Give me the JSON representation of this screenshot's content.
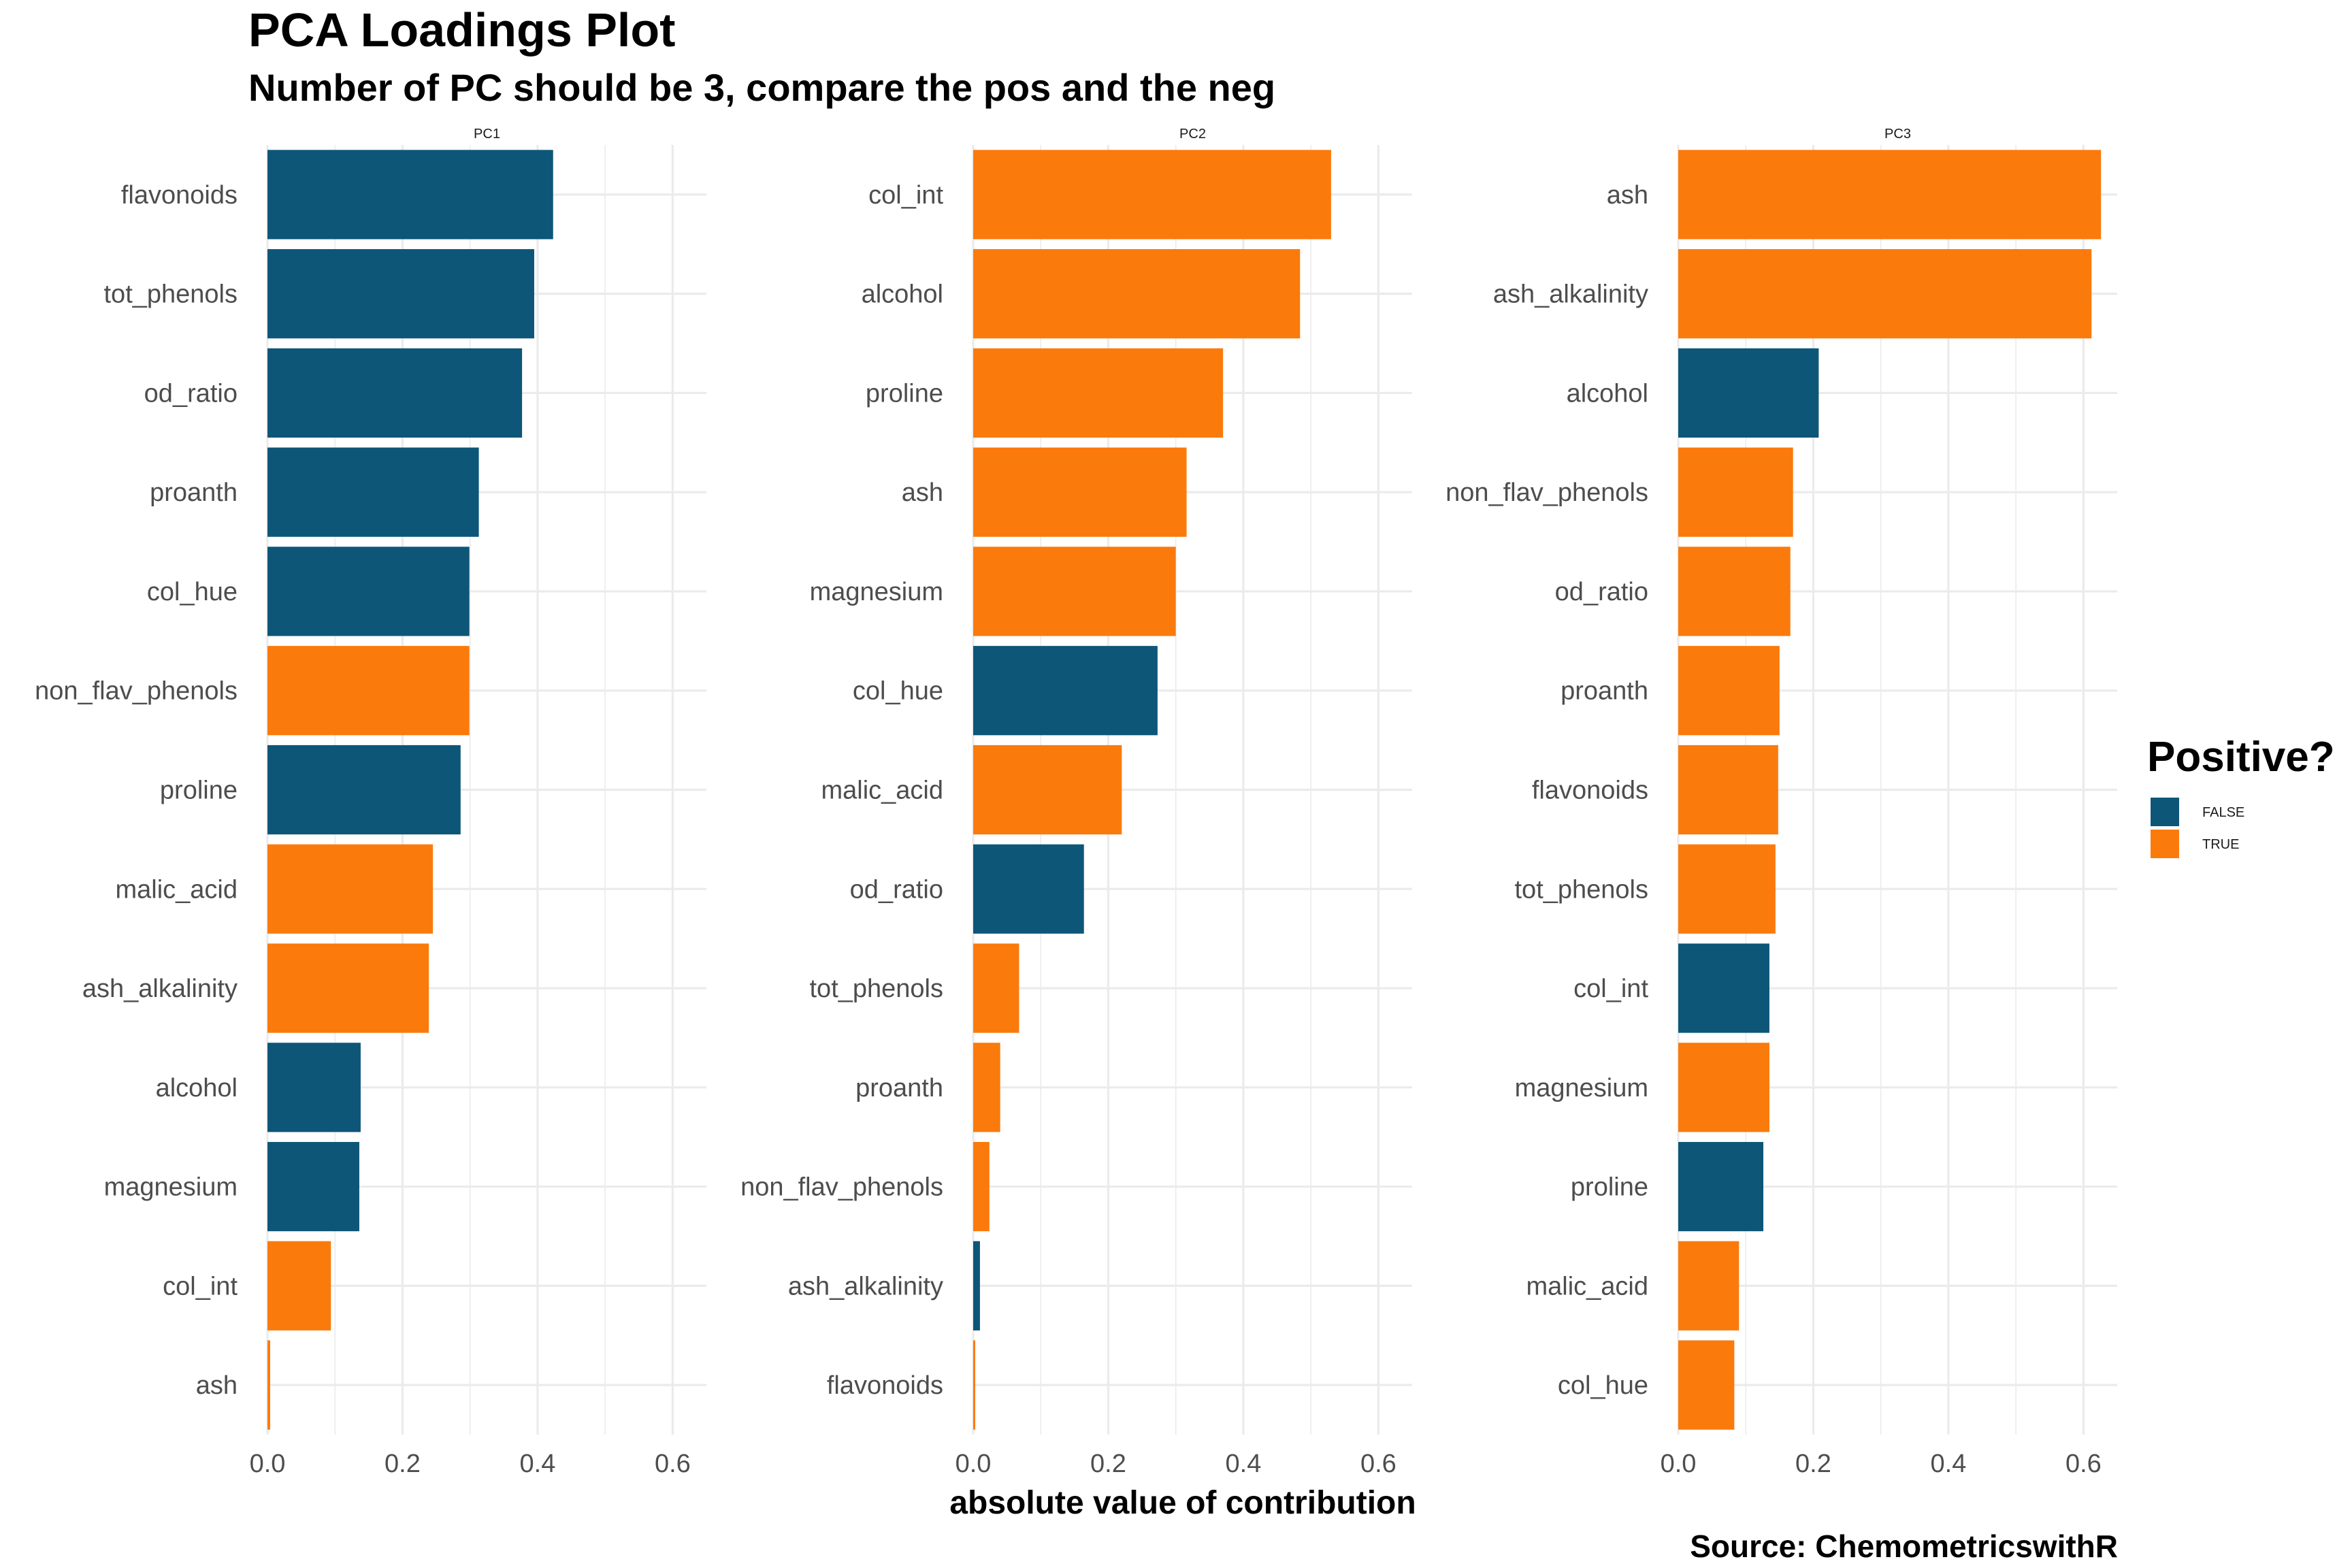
{
  "chart_data": {
    "type": "bar",
    "orientation": "horizontal",
    "title": "PCA Loadings Plot",
    "subtitle": "Number of PC should be 3, compare the pos and the neg",
    "xlabel": "absolute value of contribution",
    "caption": "Source: ChemometricswithR",
    "xlim": [
      0,
      0.65
    ],
    "xticks": [
      0.0,
      0.2,
      0.4,
      0.6
    ],
    "xtick_labels": [
      "0.0",
      "0.2",
      "0.4",
      "0.6"
    ],
    "legend": {
      "title": "Positive?",
      "position": "right",
      "entries": [
        {
          "label": "FALSE",
          "color": "#0d5678"
        },
        {
          "label": "TRUE",
          "color": "#fb7a0c"
        }
      ]
    },
    "facets": [
      {
        "name": "PC1",
        "categories": [
          "flavonoids",
          "tot_phenols",
          "od_ratio",
          "proanth",
          "col_hue",
          "non_flav_phenols",
          "proline",
          "malic_acid",
          "ash_alkalinity",
          "alcohol",
          "magnesium",
          "col_int",
          "ash"
        ],
        "values": [
          0.423,
          0.395,
          0.377,
          0.313,
          0.299,
          0.299,
          0.286,
          0.245,
          0.239,
          0.138,
          0.136,
          0.094,
          0.004
        ],
        "positive": [
          false,
          false,
          false,
          false,
          false,
          true,
          false,
          true,
          true,
          false,
          false,
          true,
          true
        ]
      },
      {
        "name": "PC2",
        "categories": [
          "col_int",
          "alcohol",
          "proline",
          "ash",
          "magnesium",
          "col_hue",
          "malic_acid",
          "od_ratio",
          "tot_phenols",
          "proanth",
          "non_flav_phenols",
          "ash_alkalinity",
          "flavonoids"
        ],
        "values": [
          0.53,
          0.484,
          0.37,
          0.316,
          0.3,
          0.273,
          0.22,
          0.164,
          0.068,
          0.04,
          0.024,
          0.01,
          0.003
        ],
        "positive": [
          true,
          true,
          true,
          true,
          true,
          false,
          true,
          false,
          true,
          true,
          true,
          false,
          true
        ]
      },
      {
        "name": "PC3",
        "categories": [
          "ash",
          "ash_alkalinity",
          "alcohol",
          "non_flav_phenols",
          "od_ratio",
          "proanth",
          "flavonoids",
          "tot_phenols",
          "col_int",
          "magnesium",
          "proline",
          "malic_acid",
          "col_hue"
        ],
        "values": [
          0.626,
          0.612,
          0.208,
          0.17,
          0.166,
          0.15,
          0.148,
          0.144,
          0.135,
          0.135,
          0.126,
          0.09,
          0.083
        ],
        "positive": [
          true,
          true,
          false,
          true,
          true,
          true,
          true,
          true,
          false,
          true,
          false,
          true,
          true
        ]
      }
    ]
  }
}
